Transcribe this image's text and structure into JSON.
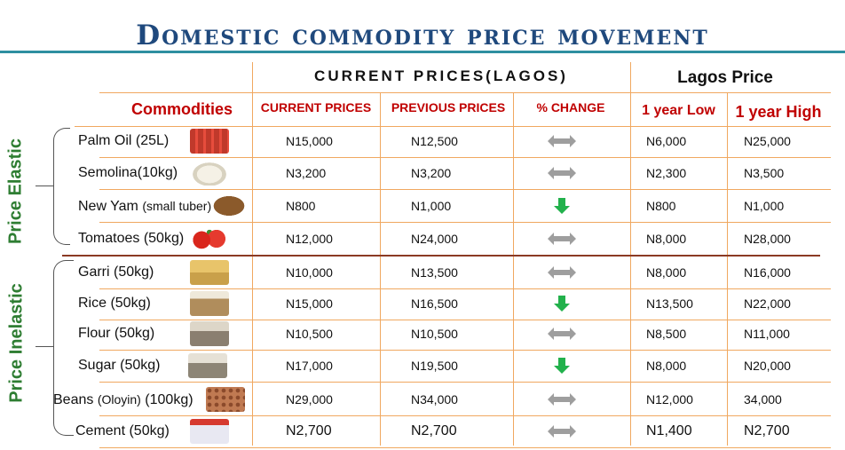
{
  "title": "Domestic commodity price movement",
  "colors": {
    "title": "#1f497d",
    "header_red": "#c00000",
    "group_label_green": "#2e7d32",
    "grid_orange": "#f0a860",
    "arrow_gray": "#9e9e9e",
    "arrow_green": "#22b14c"
  },
  "headers": {
    "group_current": "CURRENT PRICES(LAGOS)",
    "group_lagos": "Lagos Price",
    "commodities": "Commodities",
    "current_prices": "CURRENT PRICES",
    "previous_prices": "PREVIOUS PRICES",
    "pct_change": "% CHANGE",
    "year_low": "1 year Low",
    "year_high": "1 year High"
  },
  "group_labels": {
    "elastic": "Price Elastic",
    "inelastic": "Price Inelastic"
  },
  "rows": [
    {
      "name": "Palm Oil (25L)",
      "name_suffix": "",
      "current": "N15,000",
      "previous": "N12,500",
      "change": "both-arrow-icon",
      "low": "N6,000",
      "high": "N25,000",
      "image": "palm-oil-jerrycans-image"
    },
    {
      "name": "Semolina(10kg)",
      "name_suffix": "",
      "current": "N3,200",
      "previous": "N3,200",
      "change": "both-arrow-icon",
      "low": "N2,300",
      "high": "N3,500",
      "image": "semolina-bowl-image"
    },
    {
      "name": "New Yam",
      "name_suffix": "(small tuber)",
      "current": "N800",
      "previous": "N1,000",
      "change": "down-arrow-icon",
      "low": "N800",
      "high": "N1,000",
      "image": "yam-tuber-image"
    },
    {
      "name": "Tomatoes (50kg)",
      "name_suffix": "",
      "current": "N12,000",
      "previous": "N24,000",
      "change": "both-arrow-icon",
      "low": "N8,000",
      "high": "N28,000",
      "image": "tomatoes-image"
    },
    {
      "name": "Garri (50kg)",
      "name_suffix": "",
      "current": "N10,000",
      "previous": "N13,500",
      "change": "both-arrow-icon",
      "low": "N8,000",
      "high": "N16,000",
      "image": "garri-image"
    },
    {
      "name": "Rice (50kg)",
      "name_suffix": "",
      "current": "N15,000",
      "previous": "N16,500",
      "change": "down-arrow-icon",
      "low": "N13,500",
      "high": "N22,000",
      "image": "rice-sack-image"
    },
    {
      "name": "Flour (50kg)",
      "name_suffix": "",
      "current": "N10,500",
      "previous": "N10,500",
      "change": "both-arrow-icon",
      "low": "N8,500",
      "high": "N11,000",
      "image": "flour-sack-image"
    },
    {
      "name": "Sugar (50kg)",
      "name_suffix": "",
      "current": "N17,000",
      "previous": "N19,500",
      "change": "down-arrow-icon",
      "low": "N8,000",
      "high": "N20,000",
      "image": "sugar-sack-image"
    },
    {
      "name": "Beans",
      "name_suffix": "(Oloyin)",
      "name_after": "(100kg)",
      "current": "N29,000",
      "previous": "N34,000",
      "change": "both-arrow-icon",
      "low": "N12,000",
      "high": "34,000",
      "image": "beans-image"
    },
    {
      "name": "Cement (50kg)",
      "name_suffix": "",
      "current": "N2,700",
      "previous": "N2,700",
      "change": "both-arrow-icon",
      "low": "N1,400",
      "high": "N2,700",
      "image": "cement-bag-image"
    }
  ]
}
